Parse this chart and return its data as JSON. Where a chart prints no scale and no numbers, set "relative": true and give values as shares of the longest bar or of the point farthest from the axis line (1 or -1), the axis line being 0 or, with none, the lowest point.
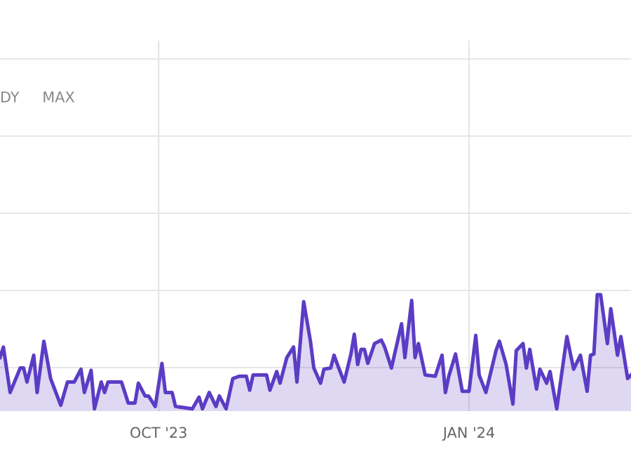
{
  "chart_data": {
    "type": "area",
    "relative": true,
    "grid": true,
    "marker": "none",
    "line_style": "solid",
    "annotations": [
      "DY",
      "MAX"
    ],
    "xlim": [
      "2023-08-15",
      "2024-02-18"
    ],
    "xticks": [
      {
        "value": "2023-10-01",
        "label": "OCT '23"
      },
      {
        "value": "2024-01-01",
        "label": "JAN '24"
      }
    ],
    "x": [
      "2023-08-15",
      "2023-08-16",
      "2023-08-18",
      "2023-08-21",
      "2023-08-22",
      "2023-08-23",
      "2023-08-25",
      "2023-08-26",
      "2023-08-28",
      "2023-08-30",
      "2023-09-02",
      "2023-09-04",
      "2023-09-06",
      "2023-09-08",
      "2023-09-09",
      "2023-09-11",
      "2023-09-12",
      "2023-09-14",
      "2023-09-15",
      "2023-09-16",
      "2023-09-18",
      "2023-09-20",
      "2023-09-22",
      "2023-09-24",
      "2023-09-25",
      "2023-09-27",
      "2023-09-28",
      "2023-09-30",
      "2023-10-02",
      "2023-10-03",
      "2023-10-05",
      "2023-10-06",
      "2023-10-11",
      "2023-10-13",
      "2023-10-14",
      "2023-10-16",
      "2023-10-18",
      "2023-10-19",
      "2023-10-21",
      "2023-10-23",
      "2023-10-25",
      "2023-10-27",
      "2023-10-28",
      "2023-10-29",
      "2023-11-02",
      "2023-11-03",
      "2023-11-05",
      "2023-11-06",
      "2023-11-08",
      "2023-11-10",
      "2023-11-11",
      "2023-11-13",
      "2023-11-15",
      "2023-11-16",
      "2023-11-18",
      "2023-11-19",
      "2023-11-21",
      "2023-11-22",
      "2023-11-23",
      "2023-11-25",
      "2023-11-27",
      "2023-11-28",
      "2023-11-29",
      "2023-11-30",
      "2023-12-01",
      "2023-12-02",
      "2023-12-04",
      "2023-12-06",
      "2023-12-07",
      "2023-12-09",
      "2023-12-12",
      "2023-12-13",
      "2023-12-15",
      "2023-12-16",
      "2023-12-17",
      "2023-12-19",
      "2023-12-22",
      "2023-12-24",
      "2023-12-25",
      "2023-12-26",
      "2023-12-28",
      "2023-12-30",
      "2024-01-01",
      "2024-01-03",
      "2024-01-04",
      "2024-01-06",
      "2024-01-09",
      "2024-01-10",
      "2024-01-12",
      "2024-01-14",
      "2024-01-15",
      "2024-01-17",
      "2024-01-18",
      "2024-01-19",
      "2024-01-21",
      "2024-01-22",
      "2024-01-24",
      "2024-01-25",
      "2024-01-27",
      "2024-01-30",
      "2024-02-01",
      "2024-02-03",
      "2024-02-05",
      "2024-02-06",
      "2024-02-07",
      "2024-02-08",
      "2024-02-09",
      "2024-02-11",
      "2024-02-12",
      "2024-02-14",
      "2024-02-15",
      "2024-02-17",
      "2024-02-18"
    ],
    "series": [
      {
        "color": "#5b3cc4",
        "values": [
          0.46,
          0.55,
          0.16,
          0.37,
          0.37,
          0.25,
          0.48,
          0.16,
          0.6,
          0.28,
          0.05,
          0.25,
          0.25,
          0.36,
          0.16,
          0.35,
          0.02,
          0.25,
          0.16,
          0.25,
          0.25,
          0.25,
          0.07,
          0.07,
          0.24,
          0.13,
          0.13,
          0.04,
          0.41,
          0.16,
          0.16,
          0.04,
          0.02,
          0.12,
          0.02,
          0.16,
          0.04,
          0.13,
          0.02,
          0.28,
          0.3,
          0.3,
          0.18,
          0.31,
          0.31,
          0.18,
          0.34,
          0.24,
          0.46,
          0.55,
          0.25,
          0.94,
          0.6,
          0.37,
          0.24,
          0.36,
          0.37,
          0.48,
          0.4,
          0.25,
          0.49,
          0.66,
          0.4,
          0.53,
          0.53,
          0.41,
          0.58,
          0.61,
          0.55,
          0.37,
          0.75,
          0.46,
          0.95,
          0.46,
          0.58,
          0.31,
          0.3,
          0.48,
          0.16,
          0.3,
          0.49,
          0.17,
          0.17,
          0.65,
          0.31,
          0.16,
          0.52,
          0.6,
          0.4,
          0.06,
          0.52,
          0.58,
          0.37,
          0.53,
          0.19,
          0.36,
          0.24,
          0.34,
          0.02,
          0.64,
          0.36,
          0.48,
          0.17,
          0.48,
          0.49,
          1,
          1,
          0.58,
          0.88,
          0.48,
          0.64,
          0.28,
          0.31
        ]
      }
    ]
  }
}
